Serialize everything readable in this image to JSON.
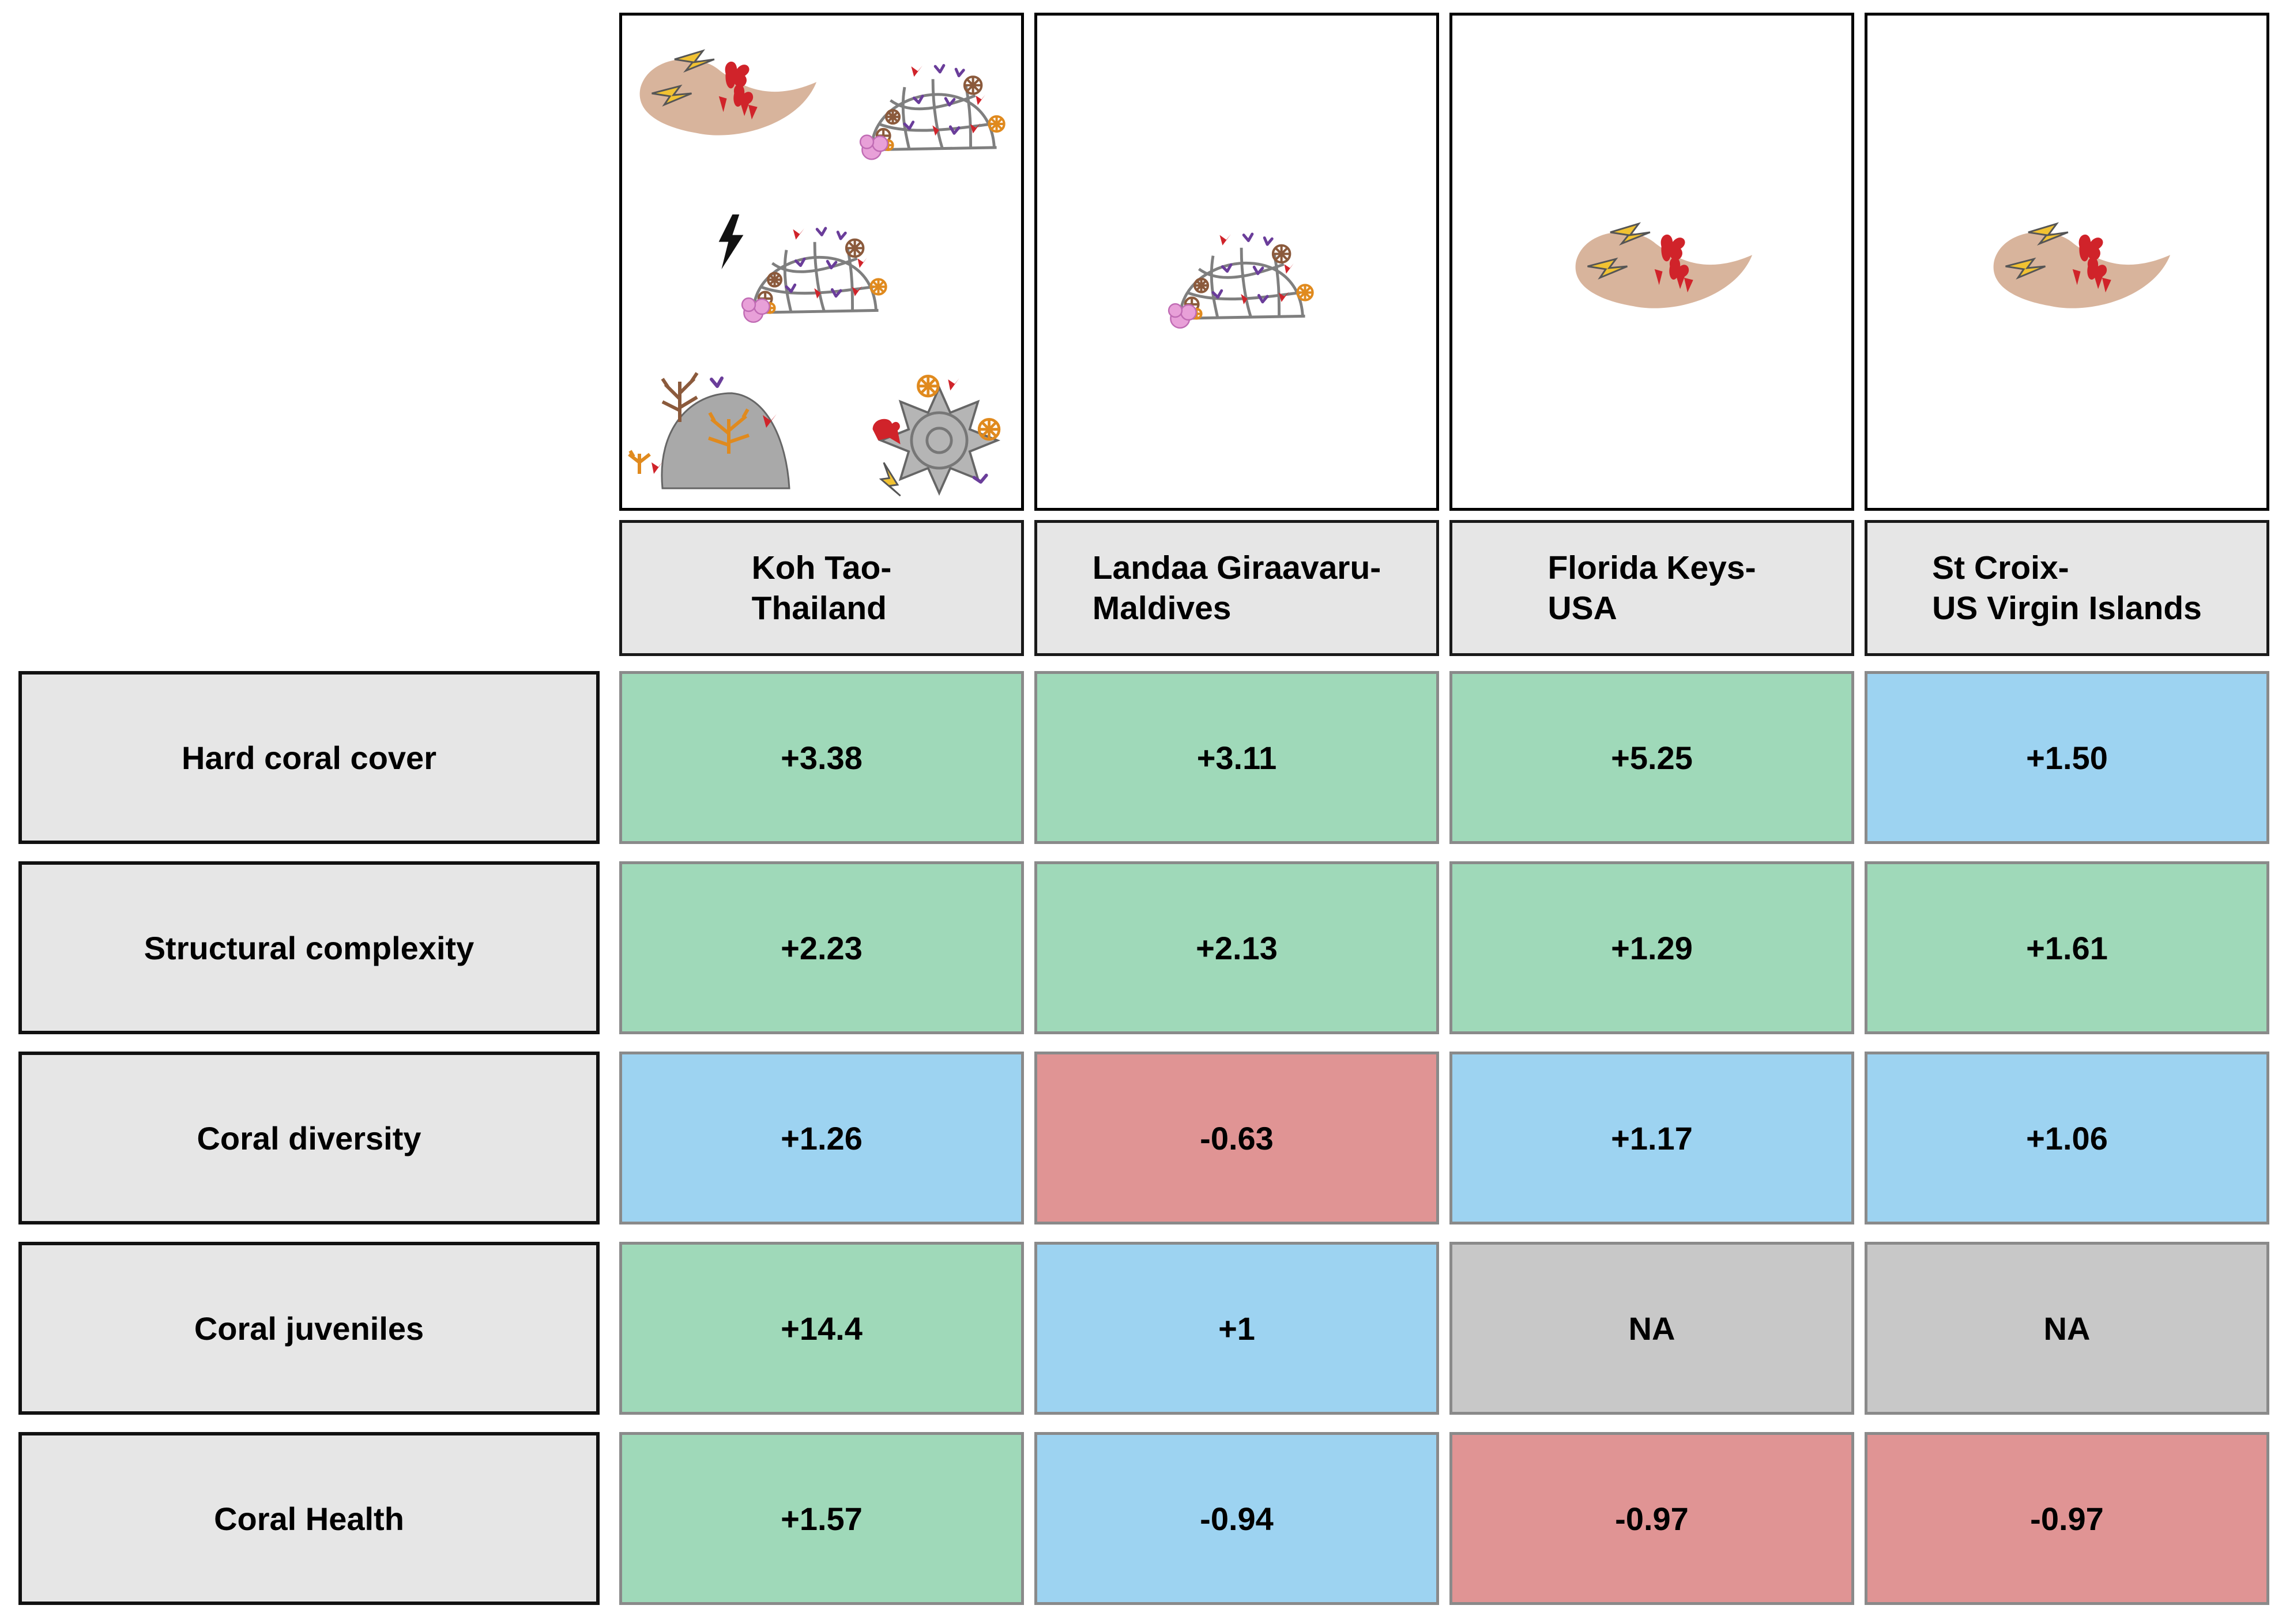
{
  "sites": [
    {
      "line1": "Koh Tao-",
      "line2": "Thailand"
    },
    {
      "line1": "Landaa Giraavaru-",
      "line2": "Maldives"
    },
    {
      "line1": "Florida Keys-",
      "line2": "USA"
    },
    {
      "line1": "St Croix-",
      "line2": "US Virgin Islands"
    }
  ],
  "rows": [
    {
      "label": "Hard coral cover",
      "values": [
        "+3.38",
        "+3.11",
        "+5.25",
        "+1.50"
      ],
      "colors": [
        "green",
        "green",
        "green",
        "blue"
      ]
    },
    {
      "label": "Structural complexity",
      "values": [
        "+2.23",
        "+2.13",
        "+1.29",
        "+1.61"
      ],
      "colors": [
        "green",
        "green",
        "green",
        "green"
      ]
    },
    {
      "label": "Coral diversity",
      "values": [
        "+1.26",
        "-0.63",
        "+1.17",
        "+1.06"
      ],
      "colors": [
        "blue",
        "red",
        "blue",
        "blue"
      ]
    },
    {
      "label": "Coral juveniles",
      "values": [
        "+14.4",
        "+1",
        "NA",
        "NA"
      ],
      "colors": [
        "green",
        "blue",
        "grey",
        "grey"
      ]
    },
    {
      "label": "Coral Health",
      "values": [
        "+1.57",
        "-0.94",
        "-0.97",
        "-0.97"
      ],
      "colors": [
        "green",
        "blue",
        "red",
        "red"
      ]
    }
  ],
  "palette": {
    "green": "#9fd9b9",
    "blue": "#9dd3f1",
    "red": "#e09494",
    "grey": "#c8c8c8",
    "label_bg": "#e6e6e6"
  },
  "illustrations": [
    [
      "rock-pile-structure-icon",
      "spider-frame-structure-icon",
      "electrified-spider-frame-icon",
      "coral-boulder-icon",
      "reef-star-structure-icon"
    ],
    [
      "spider-frame-structure-icon"
    ],
    [
      "rock-pile-structure-icon"
    ],
    [
      "rock-pile-structure-icon"
    ]
  ]
}
